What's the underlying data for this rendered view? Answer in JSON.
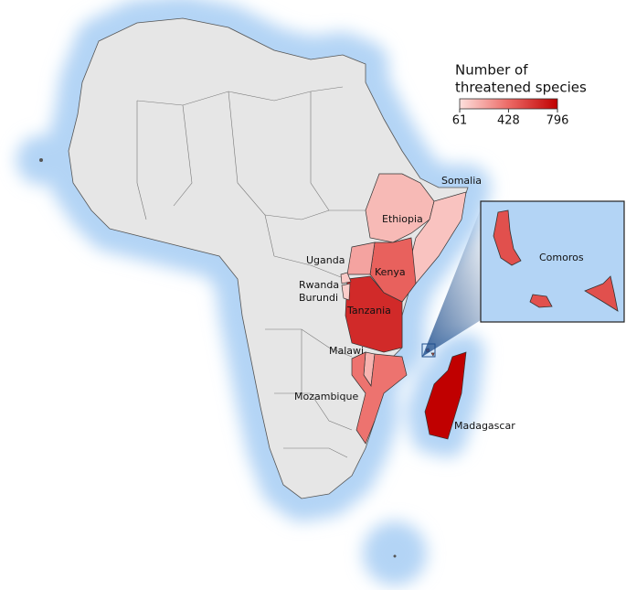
{
  "legend": {
    "title_lines": [
      "Number of",
      "threatened species"
    ],
    "ticks": [
      61,
      428,
      796
    ],
    "colormap": [
      "#fde0dd",
      "#ec6a66",
      "#c00000"
    ]
  },
  "countries": [
    {
      "name": "Ethiopia",
      "value": 180
    },
    {
      "name": "Somalia",
      "value": 150
    },
    {
      "name": "Kenya",
      "value": 460
    },
    {
      "name": "Uganda",
      "value": 250
    },
    {
      "name": "Tanzania",
      "value": 650
    },
    {
      "name": "Rwanda",
      "value": 130
    },
    {
      "name": "Burundi",
      "value": 120
    },
    {
      "name": "Malawi",
      "value": 200
    },
    {
      "name": "Mozambique",
      "value": 400
    },
    {
      "name": "Madagascar",
      "value": 796
    },
    {
      "name": "Comoros",
      "value": 520
    }
  ]
}
